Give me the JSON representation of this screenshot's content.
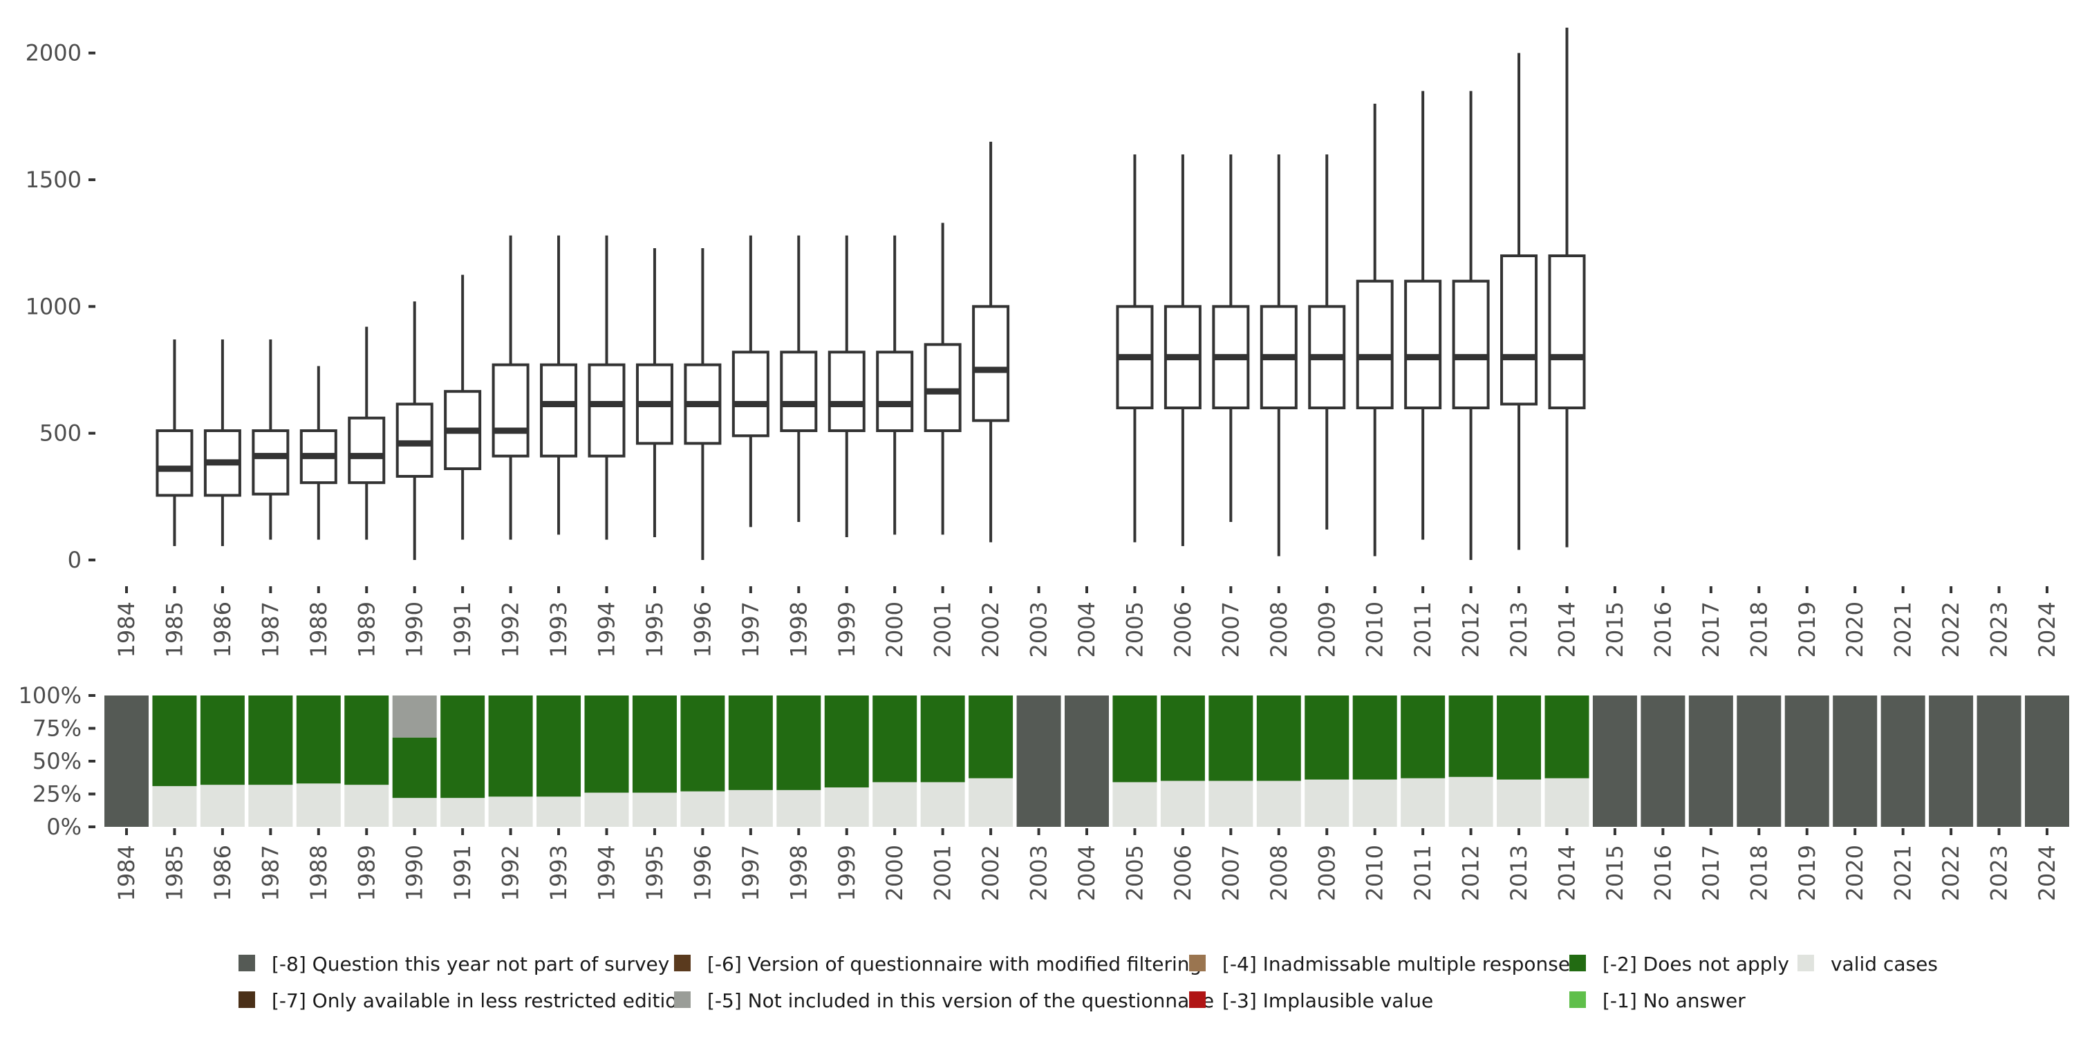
{
  "chart_data": [
    {
      "type": "box",
      "x": [
        "1984",
        "1985",
        "1986",
        "1987",
        "1988",
        "1989",
        "1990",
        "1991",
        "1992",
        "1993",
        "1994",
        "1995",
        "1996",
        "1997",
        "1998",
        "1999",
        "2000",
        "2001",
        "2002",
        "2003",
        "2004",
        "2005",
        "2006",
        "2007",
        "2008",
        "2009",
        "2010",
        "2011",
        "2012",
        "2013",
        "2014",
        "2015",
        "2016",
        "2017",
        "2018",
        "2019",
        "2020",
        "2021",
        "2022",
        "2023",
        "2024"
      ],
      "yticks": [
        0,
        500,
        1000,
        1500,
        2000
      ],
      "ylim": [
        0,
        2100
      ],
      "grid": false,
      "boxes": [
        {
          "year": "1985",
          "min": 55,
          "q1": 255,
          "median": 360,
          "q3": 510,
          "max": 870
        },
        {
          "year": "1986",
          "min": 55,
          "q1": 255,
          "median": 385,
          "q3": 510,
          "max": 870
        },
        {
          "year": "1987",
          "min": 80,
          "q1": 260,
          "median": 410,
          "q3": 510,
          "max": 870
        },
        {
          "year": "1988",
          "min": 80,
          "q1": 305,
          "median": 410,
          "q3": 510,
          "max": 765
        },
        {
          "year": "1989",
          "min": 80,
          "q1": 305,
          "median": 410,
          "q3": 560,
          "max": 920
        },
        {
          "year": "1990",
          "min": 0,
          "q1": 330,
          "median": 460,
          "q3": 615,
          "max": 1020
        },
        {
          "year": "1991",
          "min": 80,
          "q1": 360,
          "median": 510,
          "q3": 665,
          "max": 1125
        },
        {
          "year": "1992",
          "min": 80,
          "q1": 410,
          "median": 510,
          "q3": 770,
          "max": 1280
        },
        {
          "year": "1993",
          "min": 100,
          "q1": 410,
          "median": 615,
          "q3": 770,
          "max": 1280
        },
        {
          "year": "1994",
          "min": 80,
          "q1": 410,
          "median": 615,
          "q3": 770,
          "max": 1280
        },
        {
          "year": "1995",
          "min": 90,
          "q1": 460,
          "median": 615,
          "q3": 770,
          "max": 1230
        },
        {
          "year": "1996",
          "min": 0,
          "q1": 460,
          "median": 615,
          "q3": 770,
          "max": 1230
        },
        {
          "year": "1997",
          "min": 130,
          "q1": 490,
          "median": 615,
          "q3": 820,
          "max": 1280
        },
        {
          "year": "1998",
          "min": 150,
          "q1": 510,
          "median": 615,
          "q3": 820,
          "max": 1280
        },
        {
          "year": "1999",
          "min": 90,
          "q1": 510,
          "median": 615,
          "q3": 820,
          "max": 1280
        },
        {
          "year": "2000",
          "min": 100,
          "q1": 510,
          "median": 615,
          "q3": 820,
          "max": 1280
        },
        {
          "year": "2001",
          "min": 100,
          "q1": 510,
          "median": 665,
          "q3": 850,
          "max": 1330
        },
        {
          "year": "2002",
          "min": 70,
          "q1": 550,
          "median": 750,
          "q3": 1000,
          "max": 1650
        },
        {
          "year": "2005",
          "min": 70,
          "q1": 600,
          "median": 800,
          "q3": 1000,
          "max": 1600
        },
        {
          "year": "2006",
          "min": 55,
          "q1": 600,
          "median": 800,
          "q3": 1000,
          "max": 1600
        },
        {
          "year": "2007",
          "min": 150,
          "q1": 600,
          "median": 800,
          "q3": 1000,
          "max": 1600
        },
        {
          "year": "2008",
          "min": 15,
          "q1": 600,
          "median": 800,
          "q3": 1000,
          "max": 1600
        },
        {
          "year": "2009",
          "min": 120,
          "q1": 600,
          "median": 800,
          "q3": 1000,
          "max": 1600
        },
        {
          "year": "2010",
          "min": 15,
          "q1": 600,
          "median": 800,
          "q3": 1100,
          "max": 1800
        },
        {
          "year": "2011",
          "min": 80,
          "q1": 600,
          "median": 800,
          "q3": 1100,
          "max": 1850
        },
        {
          "year": "2012",
          "min": 0,
          "q1": 600,
          "median": 800,
          "q3": 1100,
          "max": 1850
        },
        {
          "year": "2013",
          "min": 40,
          "q1": 615,
          "median": 800,
          "q3": 1200,
          "max": 2000
        },
        {
          "year": "2014",
          "min": 50,
          "q1": 600,
          "median": 800,
          "q3": 1200,
          "max": 2100
        }
      ]
    },
    {
      "type": "stacked-bar",
      "x": [
        "1984",
        "1985",
        "1986",
        "1987",
        "1988",
        "1989",
        "1990",
        "1991",
        "1992",
        "1993",
        "1994",
        "1995",
        "1996",
        "1997",
        "1998",
        "1999",
        "2000",
        "2001",
        "2002",
        "2003",
        "2004",
        "2005",
        "2006",
        "2007",
        "2008",
        "2009",
        "2010",
        "2011",
        "2012",
        "2013",
        "2014",
        "2015",
        "2016",
        "2017",
        "2018",
        "2019",
        "2020",
        "2021",
        "2022",
        "2023",
        "2024"
      ],
      "yticks": [
        "0%",
        "25%",
        "50%",
        "75%",
        "100%"
      ],
      "ylim": [
        0,
        1
      ],
      "stacks": [
        {
          "year": "1984",
          "segments": {
            "-8": 1.0
          }
        },
        {
          "year": "1985",
          "segments": {
            "valid": 0.31,
            "-2": 0.69
          }
        },
        {
          "year": "1986",
          "segments": {
            "valid": 0.32,
            "-2": 0.68
          }
        },
        {
          "year": "1987",
          "segments": {
            "valid": 0.32,
            "-2": 0.68
          }
        },
        {
          "year": "1988",
          "segments": {
            "valid": 0.33,
            "-2": 0.67
          }
        },
        {
          "year": "1989",
          "segments": {
            "valid": 0.32,
            "-2": 0.68
          }
        },
        {
          "year": "1990",
          "segments": {
            "valid": 0.22,
            "-2": 0.46,
            "-5": 0.32
          }
        },
        {
          "year": "1991",
          "segments": {
            "valid": 0.22,
            "-2": 0.78
          }
        },
        {
          "year": "1992",
          "segments": {
            "valid": 0.23,
            "-2": 0.77
          }
        },
        {
          "year": "1993",
          "segments": {
            "valid": 0.23,
            "-2": 0.77
          }
        },
        {
          "year": "1994",
          "segments": {
            "valid": 0.26,
            "-2": 0.74
          }
        },
        {
          "year": "1995",
          "segments": {
            "valid": 0.26,
            "-2": 0.74
          }
        },
        {
          "year": "1996",
          "segments": {
            "valid": 0.27,
            "-2": 0.73
          }
        },
        {
          "year": "1997",
          "segments": {
            "valid": 0.28,
            "-2": 0.72
          }
        },
        {
          "year": "1998",
          "segments": {
            "valid": 0.28,
            "-2": 0.72
          }
        },
        {
          "year": "1999",
          "segments": {
            "valid": 0.3,
            "-2": 0.7
          }
        },
        {
          "year": "2000",
          "segments": {
            "valid": 0.34,
            "-2": 0.66
          }
        },
        {
          "year": "2001",
          "segments": {
            "valid": 0.34,
            "-2": 0.66
          }
        },
        {
          "year": "2002",
          "segments": {
            "valid": 0.37,
            "-2": 0.63
          }
        },
        {
          "year": "2003",
          "segments": {
            "-8": 1.0
          }
        },
        {
          "year": "2004",
          "segments": {
            "-8": 1.0
          }
        },
        {
          "year": "2005",
          "segments": {
            "valid": 0.34,
            "-2": 0.66
          }
        },
        {
          "year": "2006",
          "segments": {
            "valid": 0.35,
            "-2": 0.65
          }
        },
        {
          "year": "2007",
          "segments": {
            "valid": 0.35,
            "-2": 0.65
          }
        },
        {
          "year": "2008",
          "segments": {
            "valid": 0.35,
            "-2": 0.65
          }
        },
        {
          "year": "2009",
          "segments": {
            "valid": 0.36,
            "-2": 0.64
          }
        },
        {
          "year": "2010",
          "segments": {
            "valid": 0.36,
            "-2": 0.64
          }
        },
        {
          "year": "2011",
          "segments": {
            "valid": 0.37,
            "-2": 0.63
          }
        },
        {
          "year": "2012",
          "segments": {
            "valid": 0.38,
            "-2": 0.62
          }
        },
        {
          "year": "2013",
          "segments": {
            "valid": 0.36,
            "-2": 0.64
          }
        },
        {
          "year": "2014",
          "segments": {
            "valid": 0.37,
            "-2": 0.63
          }
        },
        {
          "year": "2015",
          "segments": {
            "-8": 1.0
          }
        },
        {
          "year": "2016",
          "segments": {
            "-8": 1.0
          }
        },
        {
          "year": "2017",
          "segments": {
            "-8": 1.0
          }
        },
        {
          "year": "2018",
          "segments": {
            "-8": 1.0
          }
        },
        {
          "year": "2019",
          "segments": {
            "-8": 1.0
          }
        },
        {
          "year": "2020",
          "segments": {
            "-8": 1.0
          }
        },
        {
          "year": "2021",
          "segments": {
            "-8": 1.0
          }
        },
        {
          "year": "2022",
          "segments": {
            "-8": 1.0
          }
        },
        {
          "year": "2023",
          "segments": {
            "-8": 1.0
          }
        },
        {
          "year": "2024",
          "segments": {
            "-8": 1.0
          }
        }
      ]
    }
  ],
  "legend": {
    "placement": "bottom",
    "items": [
      {
        "key": "-8",
        "label": "[-8] Question this year not part of survey",
        "color": "#555a55"
      },
      {
        "key": "-7",
        "label": "[-7] Only available in less restricted edition",
        "color": "#4a3018"
      },
      {
        "key": "-6",
        "label": "[-6] Version of questionnaire with modified filtering",
        "color": "#5a3a1e"
      },
      {
        "key": "-5",
        "label": "[-5] Not included in this version of the questionnaire",
        "color": "#9a9d98"
      },
      {
        "key": "-4",
        "label": "[-4] Inadmissable multiple response",
        "color": "#9a7550"
      },
      {
        "key": "-3",
        "label": "[-3] Implausible value",
        "color": "#b01515"
      },
      {
        "key": "-2",
        "label": "[-2] Does not apply",
        "color": "#226b12"
      },
      {
        "key": "-1",
        "label": "[-1] No answer",
        "color": "#5fbf4a"
      },
      {
        "key": "valid",
        "label": "valid cases",
        "color": "#e0e3de"
      }
    ]
  }
}
